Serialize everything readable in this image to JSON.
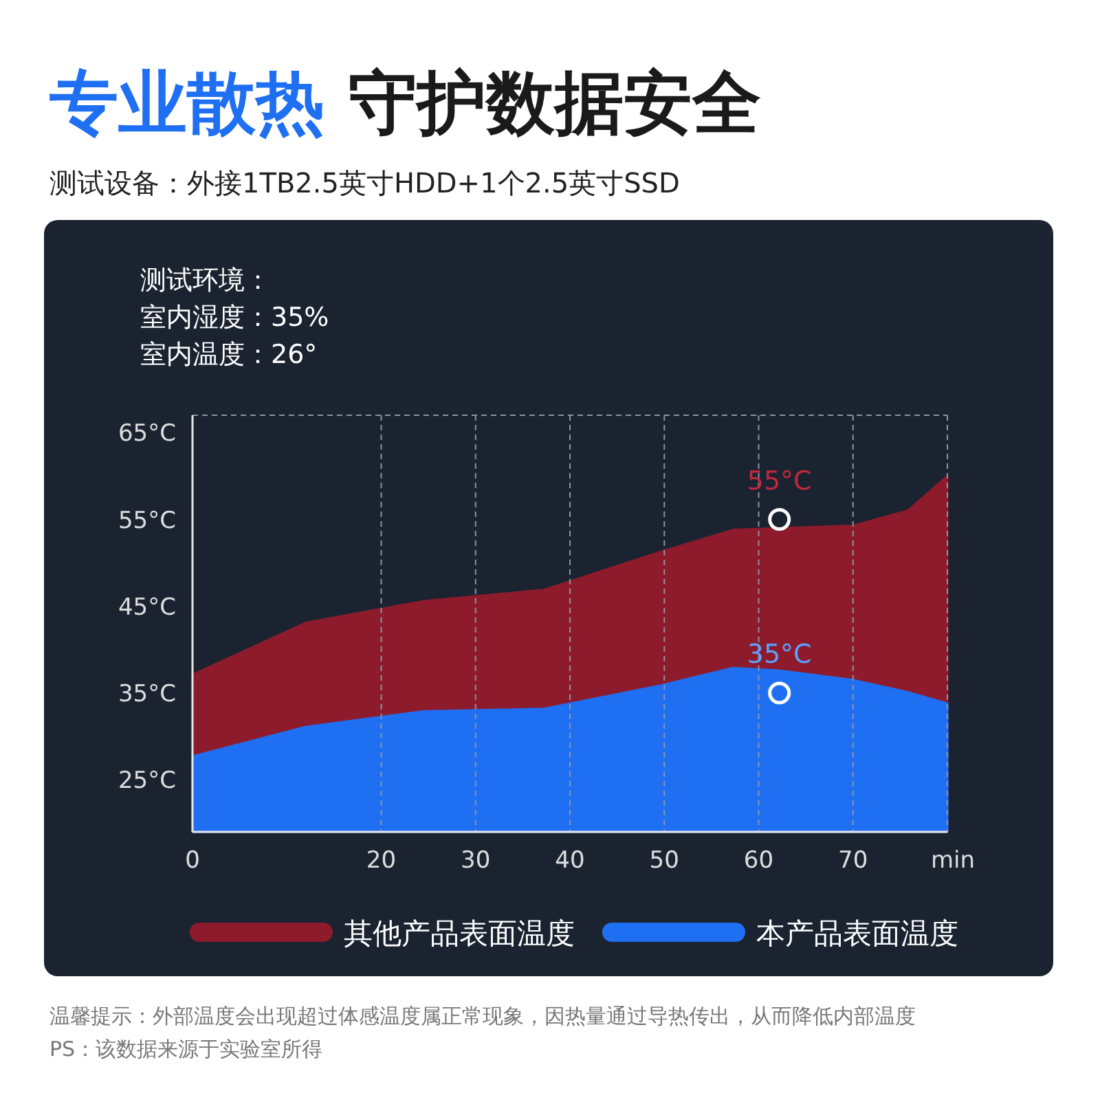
{
  "chart_data": {
    "type": "area",
    "title": "专业散热 守护数据安全",
    "subtitle": "测试设备：外接1TB2.5英寸HDD+1个2.5英寸SSD",
    "xlabel": "min",
    "x": [
      0,
      12,
      24.5,
      37.3,
      49.7,
      57.3,
      62.2,
      70,
      75.8,
      80
    ],
    "series": [
      {
        "name": "其他产品表面温度",
        "color": "#8e1b2b",
        "values": [
          37.1,
          43.1,
          45.6,
          46.9,
          51.3,
          53.8,
          54.0,
          54.3,
          56.0,
          60.0
        ]
      },
      {
        "name": "本产品表面温度",
        "color": "#1f6ff2",
        "values": [
          27.7,
          31.1,
          32.9,
          33.2,
          35.9,
          37.9,
          37.6,
          36.5,
          35.1,
          33.8
        ]
      }
    ],
    "xlim": [
      0,
      80
    ],
    "xticks": [
      0,
      20,
      30,
      40,
      50,
      60,
      70
    ],
    "ylim": [
      19,
      67
    ],
    "yticks": [
      {
        "value": 25,
        "label": "25°C"
      },
      {
        "value": 35,
        "label": "35°C"
      },
      {
        "value": 45,
        "label": "45°C"
      },
      {
        "value": 55,
        "label": "55°C"
      },
      {
        "value": 65,
        "label": "65°C"
      }
    ],
    "grid": "x",
    "legend": "bottom",
    "annotations": [
      "测试环境：",
      "室内湿度：35%",
      "室内温度：26°",
      {
        "text": "55°C",
        "x": 62.2,
        "y": 55
      },
      {
        "text": "35°C",
        "x": 62.2,
        "y": 35
      },
      "温馨提示：外部温度会出现超过体感温度属正常现象，因热量通过导热传出，从而降低内部温度",
      "PS：该数据来源于实验室所得"
    ]
  }
}
